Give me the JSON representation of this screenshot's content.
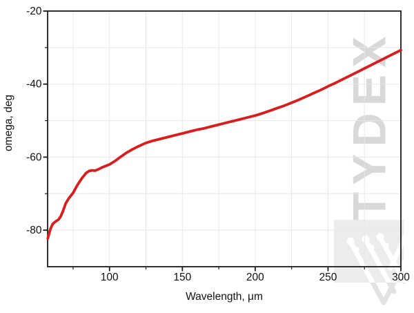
{
  "figure": {
    "background": "#ffffff",
    "watermark": {
      "text": "TYDEX",
      "text_color": "#d8d8d8",
      "logo_square_color": "#ececec",
      "logo_stroke_color": "#ffffff",
      "logo_faint_color": "#e2e2e2"
    },
    "colors": {
      "curve": "#dc1c1c",
      "grid": "#e7e7e7",
      "axis": "#1a1a1a",
      "text": "#111111"
    }
  },
  "chart_data": {
    "type": "line",
    "title": "",
    "xlabel": "Wavelength, μm",
    "ylabel": "omega, deg",
    "xlim": [
      57.5,
      300
    ],
    "ylim": [
      -90,
      -20
    ],
    "grid": true,
    "legend": "none",
    "x_major_ticks": [
      100,
      150,
      200,
      250,
      300
    ],
    "x_major_tick_labels": [
      "100",
      "150",
      "200",
      "250",
      "300"
    ],
    "x_minor_ticks": [
      75,
      125,
      175,
      225,
      275
    ],
    "y_major_ticks": [
      -20,
      -40,
      -60,
      -80
    ],
    "y_major_tick_labels": [
      "-20",
      "-40",
      "-60",
      "-80"
    ],
    "y_minor_ticks": [
      -30,
      -50,
      -70
    ],
    "x_grid_values": [
      75,
      100,
      125,
      150,
      175,
      200,
      225,
      250,
      275
    ],
    "y_grid_values": [
      -30,
      -40,
      -50,
      -60,
      -70,
      -80
    ],
    "series": [
      {
        "name": "omega",
        "color": "#dc1c1c",
        "x": [
          57.6,
          58.5,
          59.5,
          61,
          63,
          65,
          66.5,
          68,
          70,
          72,
          75,
          78,
          81,
          84,
          86,
          88,
          90,
          92,
          95,
          100,
          104,
          108,
          112,
          116,
          120,
          125,
          130,
          135,
          140,
          145,
          150,
          155,
          160,
          165,
          170,
          175,
          180,
          185,
          190,
          195,
          200,
          205,
          210,
          215,
          220,
          225,
          230,
          235,
          240,
          245,
          250,
          255,
          260,
          265,
          270,
          275,
          280,
          285,
          290,
          295,
          300
        ],
        "y": [
          -82.3,
          -81.0,
          -79.6,
          -78.3,
          -77.6,
          -77.1,
          -76.2,
          -74.8,
          -72.6,
          -71.3,
          -69.8,
          -67.6,
          -65.8,
          -64.3,
          -63.8,
          -63.6,
          -63.7,
          -63.4,
          -62.8,
          -62.0,
          -61.0,
          -59.8,
          -58.7,
          -57.8,
          -57.0,
          -56.1,
          -55.5,
          -55.0,
          -54.5,
          -54.0,
          -53.5,
          -53.0,
          -52.5,
          -52.1,
          -51.6,
          -51.1,
          -50.6,
          -50.1,
          -49.6,
          -49.1,
          -48.6,
          -48.0,
          -47.3,
          -46.6,
          -45.9,
          -45.1,
          -44.3,
          -43.4,
          -42.5,
          -41.6,
          -40.6,
          -39.7,
          -38.7,
          -37.7,
          -36.7,
          -35.7,
          -34.7,
          -33.7,
          -32.7,
          -31.7,
          -30.7
        ]
      }
    ]
  }
}
